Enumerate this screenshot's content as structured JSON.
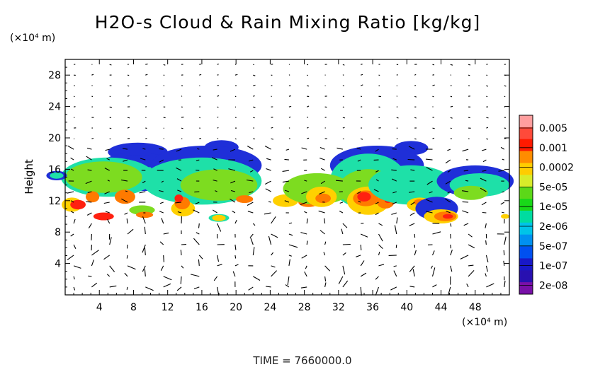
{
  "chart_data": {
    "type": "heatmap",
    "title": "H2O-s Cloud & Rain Mixing Ratio [kg/kg]",
    "ylabel": "Height",
    "yunit": "(×10⁴ m)",
    "xunit": "(×10⁴ m)",
    "xlim": [
      0,
      52
    ],
    "ylim": [
      0,
      30
    ],
    "xticks": [
      "4",
      "8",
      "12",
      "16",
      "20",
      "24",
      "28",
      "32",
      "36",
      "40",
      "44",
      "48"
    ],
    "yticks": [
      "4",
      "8",
      "12",
      "16",
      "20",
      "24",
      "28"
    ],
    "x_tick_values": [
      4,
      8,
      12,
      16,
      20,
      24,
      28,
      32,
      36,
      40,
      44,
      48
    ],
    "y_tick_values": [
      4,
      8,
      12,
      16,
      20,
      24,
      28
    ],
    "overlay": "wind vectors",
    "colorbar": {
      "labels": [
        "0.005",
        "0.001",
        "0.0002",
        "5e-05",
        "1e-05",
        "2e-06",
        "5e-07",
        "1e-07",
        "2e-08"
      ],
      "colors": [
        "#ff9e9e",
        "#ff4a3a",
        "#ff1a00",
        "#ff8c00",
        "#ffcc00",
        "#d8ec2a",
        "#5cd818",
        "#18d818",
        "#00dca0",
        "#00c4e8",
        "#0090f0",
        "#0050f0",
        "#1818c8",
        "#2810b0",
        "#7810a8"
      ]
    },
    "regions": [
      {
        "cx": 8.5,
        "cy": 18.2,
        "rx": 3.5,
        "ry": 1.2,
        "level": 1
      },
      {
        "cx": 8.5,
        "cy": 16.5,
        "rx": 4.5,
        "ry": 1.6,
        "level": 1
      },
      {
        "cx": 8.5,
        "cy": 15.5,
        "rx": 6.5,
        "ry": 2.3,
        "level": 1
      },
      {
        "cx": 3.5,
        "cy": 15.5,
        "rx": 1.6,
        "ry": 0.7,
        "level": 1
      },
      {
        "cx": 9.5,
        "cy": 15.3,
        "rx": 2.0,
        "ry": 1.0,
        "level": 2
      },
      {
        "cx": 5.0,
        "cy": 15.0,
        "rx": 5.5,
        "ry": 2.5,
        "level": 2
      },
      {
        "cx": 4.5,
        "cy": 15.0,
        "rx": 4.5,
        "ry": 2.0,
        "level": 3
      },
      {
        "cx": 0.8,
        "cy": 11.5,
        "rx": 1.2,
        "ry": 0.9,
        "level": 4
      },
      {
        "cx": 1.5,
        "cy": 11.5,
        "rx": 0.9,
        "ry": 0.6,
        "level": 6
      },
      {
        "cx": 3.2,
        "cy": 12.5,
        "rx": 0.8,
        "ry": 0.7,
        "level": 5
      },
      {
        "cx": 7.0,
        "cy": 12.5,
        "rx": 1.2,
        "ry": 0.9,
        "level": 5
      },
      {
        "cx": 4.5,
        "cy": 10.0,
        "rx": 1.2,
        "ry": 0.5,
        "level": 6
      },
      {
        "cx": -1.0,
        "cy": 15.2,
        "rx": 1.2,
        "ry": 0.6,
        "level": 1
      },
      {
        "cx": -1.0,
        "cy": 15.2,
        "rx": 0.8,
        "ry": 0.4,
        "level": 2
      },
      {
        "cx": 18.3,
        "cy": 18.8,
        "rx": 2.0,
        "ry": 0.9,
        "level": 1
      },
      {
        "cx": 16.5,
        "cy": 16.5,
        "rx": 6.5,
        "ry": 2.5,
        "level": 1
      },
      {
        "cx": 16.0,
        "cy": 14.5,
        "rx": 7.0,
        "ry": 3.0,
        "level": 2
      },
      {
        "cx": 18.0,
        "cy": 14.0,
        "rx": 4.5,
        "ry": 2.0,
        "level": 3
      },
      {
        "cx": 13.8,
        "cy": 11.0,
        "rx": 1.4,
        "ry": 1.0,
        "level": 4
      },
      {
        "cx": 13.7,
        "cy": 11.7,
        "rx": 0.9,
        "ry": 0.8,
        "level": 5
      },
      {
        "cx": 13.3,
        "cy": 12.3,
        "rx": 0.5,
        "ry": 0.5,
        "level": 6
      },
      {
        "cx": 9.0,
        "cy": 10.8,
        "rx": 1.5,
        "ry": 0.6,
        "level": 3
      },
      {
        "cx": 9.3,
        "cy": 10.2,
        "rx": 1.0,
        "ry": 0.4,
        "level": 5
      },
      {
        "cx": 25.8,
        "cy": 12.0,
        "rx": 1.5,
        "ry": 0.8,
        "level": 4
      },
      {
        "cx": 21.0,
        "cy": 12.2,
        "rx": 1.0,
        "ry": 0.5,
        "level": 5
      },
      {
        "cx": 28.5,
        "cy": 11.8,
        "rx": 1.2,
        "ry": 0.6,
        "level": 5
      },
      {
        "cx": 18.0,
        "cy": 9.8,
        "rx": 1.2,
        "ry": 0.5,
        "level": 2
      },
      {
        "cx": 18.0,
        "cy": 9.8,
        "rx": 0.8,
        "ry": 0.4,
        "level": 4
      },
      {
        "cx": 40.5,
        "cy": 18.7,
        "rx": 2.0,
        "ry": 0.9,
        "level": 1
      },
      {
        "cx": 36.5,
        "cy": 16.5,
        "rx": 5.5,
        "ry": 2.5,
        "level": 1
      },
      {
        "cx": 35.5,
        "cy": 14.5,
        "rx": 4.5,
        "ry": 3.5,
        "level": 2
      },
      {
        "cx": 35.5,
        "cy": 13.5,
        "rx": 3.5,
        "ry": 2.5,
        "level": 3
      },
      {
        "cx": 29.5,
        "cy": 13.5,
        "rx": 4.0,
        "ry": 2.0,
        "level": 3
      },
      {
        "cx": 30.0,
        "cy": 12.5,
        "rx": 1.8,
        "ry": 1.3,
        "level": 4
      },
      {
        "cx": 30.2,
        "cy": 12.3,
        "rx": 0.9,
        "ry": 0.6,
        "level": 5
      },
      {
        "cx": 35.5,
        "cy": 12.0,
        "rx": 2.5,
        "ry": 1.8,
        "level": 4
      },
      {
        "cx": 35.2,
        "cy": 12.3,
        "rx": 1.5,
        "ry": 1.0,
        "level": 5
      },
      {
        "cx": 35.0,
        "cy": 12.5,
        "rx": 0.8,
        "ry": 0.6,
        "level": 6
      },
      {
        "cx": 37.5,
        "cy": 11.8,
        "rx": 1.0,
        "ry": 0.8,
        "level": 5
      },
      {
        "cx": 37.8,
        "cy": 12.0,
        "rx": 0.4,
        "ry": 0.3,
        "level": 6
      },
      {
        "cx": 40.5,
        "cy": 14.0,
        "rx": 5.0,
        "ry": 2.5,
        "level": 2
      },
      {
        "cx": 41.5,
        "cy": 11.5,
        "rx": 1.5,
        "ry": 0.9,
        "level": 4
      },
      {
        "cx": 41.5,
        "cy": 11.8,
        "rx": 0.7,
        "ry": 0.4,
        "level": 5
      },
      {
        "cx": 43.5,
        "cy": 11.0,
        "rx": 2.5,
        "ry": 1.5,
        "level": 1
      },
      {
        "cx": 44.0,
        "cy": 10.0,
        "rx": 2.0,
        "ry": 0.9,
        "level": 4
      },
      {
        "cx": 44.5,
        "cy": 10.0,
        "rx": 1.3,
        "ry": 0.6,
        "level": 5
      },
      {
        "cx": 44.8,
        "cy": 10.0,
        "rx": 0.6,
        "ry": 0.3,
        "level": 6
      },
      {
        "cx": 48.0,
        "cy": 14.5,
        "rx": 4.5,
        "ry": 2.0,
        "level": 1
      },
      {
        "cx": 48.5,
        "cy": 14.0,
        "rx": 3.5,
        "ry": 1.5,
        "level": 2
      },
      {
        "cx": 47.5,
        "cy": 13.0,
        "rx": 2.0,
        "ry": 0.9,
        "level": 3
      },
      {
        "cx": 51.5,
        "cy": 10.0,
        "rx": 0.5,
        "ry": 0.3,
        "level": 4
      }
    ]
  },
  "footer": {
    "time": "TIME = 7660000.0"
  }
}
